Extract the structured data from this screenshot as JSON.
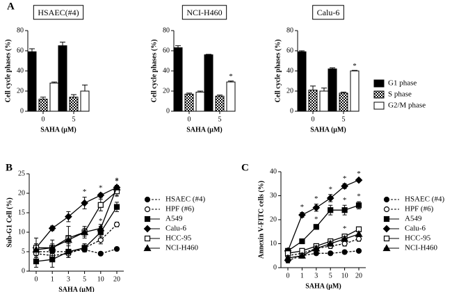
{
  "chart_data": [
    {
      "type": "bar",
      "panel": "A",
      "title": "HSAEC(#4)",
      "ylabel": "Cell cycle phases (%)",
      "xlabel": "SAHA (μM)",
      "categories": [
        "0",
        "5"
      ],
      "ylim": [
        0,
        80
      ],
      "yticks": [
        0,
        20,
        40,
        60,
        80
      ],
      "series": [
        {
          "color": "#000000",
          "values": [
            59,
            65
          ],
          "errors": [
            3,
            3.5
          ]
        },
        {
          "color": "#000000",
          "pattern": "checker",
          "values": [
            12,
            14
          ],
          "errors": [
            2,
            2.5
          ]
        },
        {
          "color": "#ffffff",
          "values": [
            28,
            20
          ],
          "errors": [
            1,
            6
          ]
        }
      ]
    },
    {
      "type": "bar",
      "title": "NCI-H460",
      "ylabel": "Cell cycle phases (%)",
      "xlabel": "SAHA (μM)",
      "categories": [
        "0",
        "5"
      ],
      "ylim": [
        0,
        80
      ],
      "yticks": [
        0,
        20,
        40,
        60,
        80
      ],
      "series": [
        {
          "color": "#000000",
          "values": [
            63,
            56
          ],
          "errors": [
            2,
            0.5
          ]
        },
        {
          "color": "#000000",
          "pattern": "checker",
          "values": [
            17,
            15
          ],
          "errors": [
            1,
            1
          ]
        },
        {
          "color": "#ffffff",
          "values": [
            19,
            29
          ],
          "errors": [
            1,
            1
          ],
          "significance": [
            null,
            "*"
          ]
        }
      ]
    },
    {
      "type": "bar",
      "title": "Calu-6",
      "ylabel": "Cell cycle phases (%)",
      "xlabel": "SAHA (μM)",
      "categories": [
        "0",
        "5"
      ],
      "ylim": [
        0,
        80
      ],
      "yticks": [
        0,
        20,
        40,
        60,
        80
      ],
      "legend": "right",
      "series": [
        {
          "name": "G1 phase",
          "color": "#000000",
          "values": [
            59,
            42
          ],
          "errors": [
            1,
            1
          ]
        },
        {
          "name": "S phase",
          "color": "#000000",
          "pattern": "checker",
          "values": [
            21,
            18
          ],
          "errors": [
            4,
            1
          ]
        },
        {
          "name": "G2/M phase",
          "color": "#ffffff",
          "values": [
            20,
            40
          ],
          "errors": [
            3,
            0.5
          ],
          "significance": [
            null,
            "*"
          ]
        }
      ]
    },
    {
      "type": "line",
      "panel": "B",
      "ylabel": "Sub-G1 Cell (%)",
      "xlabel": "SAHA (μM)",
      "categories": [
        "0",
        "1",
        "3",
        "5",
        "10",
        "20"
      ],
      "ylim": [
        0,
        25
      ],
      "yticks": [
        0,
        5,
        10,
        15,
        20,
        25
      ],
      "legend": "right",
      "series": [
        {
          "name": "HSAEC (#4)",
          "marker": "circle",
          "line": "dashed",
          "values": [
            5,
            5,
            5,
            5.5,
            4.5,
            5.7
          ],
          "errors": [
            1,
            0.8,
            0.6,
            0.6,
            0.4,
            0.4
          ]
        },
        {
          "name": "HPF (#6)",
          "marker": "circle-open",
          "line": "dashed",
          "values": [
            4.5,
            4,
            4.5,
            6,
            8,
            12
          ],
          "errors": [
            1,
            1,
            1,
            1,
            1,
            0.6
          ]
        },
        {
          "name": "A549",
          "marker": "square",
          "line": "solid",
          "values": [
            2.5,
            3,
            5,
            6,
            10,
            16.5
          ],
          "errors": [
            1.5,
            2,
            1.5,
            1,
            1.5,
            1.2
          ],
          "significance": [
            null,
            null,
            null,
            null,
            "*",
            "*"
          ]
        },
        {
          "name": "Calu-6",
          "marker": "diamond",
          "line": "solid",
          "values": [
            6,
            11,
            14,
            17.5,
            19.5,
            21.5
          ],
          "errors": [
            1,
            0.6,
            1.3,
            1.5,
            0.5,
            0.5
          ],
          "significance": [
            null,
            null,
            null,
            "*",
            "*",
            "*"
          ]
        },
        {
          "name": "HCC-95",
          "marker": "square-open",
          "line": "solid",
          "values": [
            6,
            6,
            8.5,
            10,
            17,
            20.5
          ],
          "errors": [
            2.5,
            2,
            3,
            1.5,
            1.5,
            1.2
          ],
          "significance": [
            null,
            null,
            null,
            null,
            null,
            "*"
          ]
        },
        {
          "name": "NCI-H460",
          "marker": "triangle",
          "line": "solid",
          "values": [
            5.5,
            6,
            8,
            10,
            11,
            21.5
          ],
          "errors": [
            1.5,
            1,
            1,
            1,
            1,
            0.5
          ]
        }
      ]
    },
    {
      "type": "line",
      "panel": "C",
      "ylabel": "Annexin V-FITC cells (%)",
      "xlabel": "SAHA (μM)",
      "categories": [
        "0",
        "1",
        "3",
        "5",
        "10",
        "20"
      ],
      "ylim": [
        0,
        40
      ],
      "yticks": [
        0,
        10,
        20,
        30,
        40
      ],
      "legend": "right",
      "series": [
        {
          "name": "HSAEC (#4)",
          "marker": "circle",
          "line": "dashed",
          "values": [
            3,
            5,
            6,
            6,
            6.5,
            7
          ],
          "errors": [
            1,
            1,
            0.5,
            0.5,
            0.5,
            0.5
          ]
        },
        {
          "name": "HPF (#6)",
          "marker": "circle-open",
          "line": "dashed",
          "values": [
            5,
            6,
            8,
            9,
            10,
            12
          ],
          "errors": [
            1,
            1,
            1,
            1,
            1,
            1
          ]
        },
        {
          "name": "A549",
          "marker": "square",
          "line": "solid",
          "values": [
            7,
            11,
            17,
            24,
            24,
            26
          ],
          "errors": [
            1,
            1,
            1,
            2,
            2,
            1.5
          ],
          "significance": [
            null,
            null,
            "*",
            "*",
            "*",
            "*"
          ]
        },
        {
          "name": "Calu-6",
          "marker": "diamond",
          "line": "solid",
          "values": [
            7,
            22,
            25,
            29,
            34,
            36.5
          ],
          "errors": [
            1,
            1,
            1.5,
            1.5,
            1,
            0.5
          ],
          "significance": [
            null,
            "*",
            "*",
            "*",
            "*",
            "*"
          ]
        },
        {
          "name": "HCC-95",
          "marker": "square-open",
          "line": "solid",
          "values": [
            6,
            7,
            9,
            11,
            13,
            16
          ],
          "errors": [
            1,
            1,
            1,
            1,
            1,
            1
          ],
          "significance": [
            null,
            null,
            null,
            null,
            "*",
            null
          ]
        },
        {
          "name": "NCI-H460",
          "marker": "triangle",
          "line": "solid",
          "values": [
            4,
            5,
            8,
            10,
            12,
            14
          ],
          "errors": [
            1,
            1,
            1,
            1,
            1,
            1
          ]
        }
      ]
    }
  ]
}
